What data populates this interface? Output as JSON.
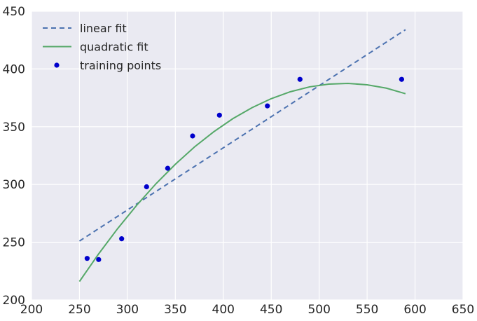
{
  "chart_data": {
    "type": "line",
    "title": "",
    "xlabel": "",
    "ylabel": "",
    "xlim": [
      200,
      650
    ],
    "ylim": [
      200,
      450
    ],
    "xticks": [
      200,
      250,
      300,
      350,
      400,
      450,
      500,
      550,
      600,
      650
    ],
    "yticks": [
      200,
      250,
      300,
      350,
      400,
      450
    ],
    "grid": true,
    "legend_position": "top-left",
    "series": [
      {
        "name": "linear fit",
        "kind": "line",
        "style": "dashed",
        "color": "#4c72b0",
        "x": [
          250,
          590
        ],
        "y": [
          251,
          434
        ]
      },
      {
        "name": "quadratic fit",
        "kind": "line",
        "style": "solid",
        "color": "#55a868",
        "x": [
          250,
          270,
          290,
          310,
          330,
          350,
          370,
          390,
          410,
          430,
          450,
          470,
          490,
          510,
          530,
          550,
          570,
          590
        ],
        "y": [
          216.0,
          239.9,
          262.0,
          282.3,
          300.8,
          317.5,
          332.5,
          345.6,
          357.0,
          366.5,
          374.3,
          380.3,
          384.5,
          386.9,
          387.5,
          386.3,
          383.4,
          378.6
        ]
      },
      {
        "name": "training points",
        "kind": "scatter",
        "color": "#0000cc",
        "x": [
          258,
          270,
          294,
          320,
          342,
          368,
          396,
          446,
          480,
          586
        ],
        "y": [
          236,
          235,
          253,
          298,
          314,
          342,
          360,
          368,
          391,
          391
        ]
      }
    ]
  }
}
